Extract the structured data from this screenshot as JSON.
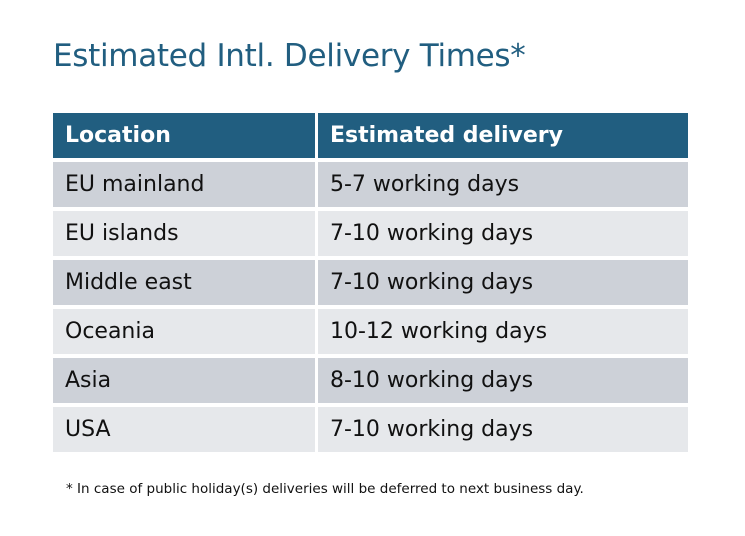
{
  "title": "Estimated Intl. Delivery Times*",
  "colors": {
    "header_bg": "#215E80",
    "row_odd": "#CDD1D8",
    "row_even": "#E6E8EB",
    "title": "#215E80"
  },
  "table": {
    "headers": [
      "Location",
      "Estimated delivery"
    ],
    "rows": [
      [
        "EU mainland",
        "5-7 working days"
      ],
      [
        "EU islands",
        "7-10 working days"
      ],
      [
        "Middle east",
        "7-10 working days"
      ],
      [
        "Oceania",
        "10-12 working days"
      ],
      [
        "Asia",
        "8-10 working days"
      ],
      [
        "USA",
        "7-10 working days"
      ]
    ]
  },
  "footnote": "* In case of public holiday(s) deliveries will be deferred to next business day."
}
